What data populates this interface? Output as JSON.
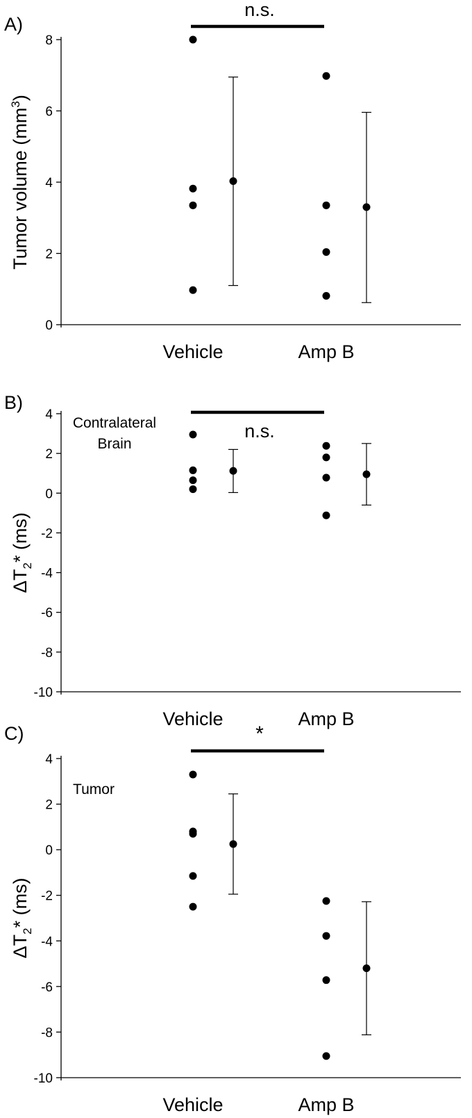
{
  "chart_data": [
    {
      "panel_label": "A)",
      "type": "scatter",
      "ylabel": "Tumor volume (mm",
      "ylabel_sup": "3",
      "ylabel_tail": ")",
      "ylim": [
        0,
        8
      ],
      "yticks": [
        0,
        2,
        4,
        6,
        8
      ],
      "categories": [
        "Vehicle",
        "Amp B"
      ],
      "series": [
        {
          "points": [
            8.0,
            3.82,
            3.35,
            0.97
          ],
          "mean": 4.03,
          "sd_low": 1.1,
          "sd_high": 6.95
        },
        {
          "points": [
            6.98,
            3.35,
            2.04,
            0.81
          ],
          "mean": 3.3,
          "sd_low": 0.62,
          "sd_high": 5.96
        }
      ],
      "annotation": "n.s.",
      "annotation_y": 8.45,
      "inline_label": []
    },
    {
      "panel_label": "B)",
      "type": "scatter",
      "ylabel": "ΔT",
      "ylabel_sub": "2",
      "ylabel_tail": "* (ms)",
      "ylim": [
        -10,
        4
      ],
      "yticks": [
        -10,
        -8,
        -6,
        -4,
        -2,
        0,
        2,
        4
      ],
      "categories": [
        "Vehicle",
        "Amp B"
      ],
      "series": [
        {
          "points": [
            2.95,
            1.15,
            0.65,
            0.2
          ],
          "mean": 1.12,
          "sd_low": 0.03,
          "sd_high": 2.2
        },
        {
          "points": [
            2.38,
            1.8,
            0.78,
            -1.12
          ],
          "mean": 0.95,
          "sd_low": -0.6,
          "sd_high": 2.5
        }
      ],
      "annotation": "n.s.",
      "annotation_y": 3.9,
      "inline_label": [
        "Contralateral",
        "Brain"
      ]
    },
    {
      "panel_label": "C)",
      "type": "scatter",
      "ylabel": "ΔT",
      "ylabel_sub": "2",
      "ylabel_tail": "* (ms)",
      "ylim": [
        -10,
        4
      ],
      "yticks": [
        -10,
        -8,
        -6,
        -4,
        -2,
        0,
        2,
        4
      ],
      "categories": [
        "Vehicle",
        "Amp B"
      ],
      "series": [
        {
          "points": [
            3.3,
            0.8,
            0.7,
            -1.15,
            -2.5
          ],
          "mean": 0.25,
          "sd_low": -1.95,
          "sd_high": 2.45
        },
        {
          "points": [
            -2.25,
            -3.78,
            -5.72,
            -9.05
          ],
          "mean": -5.2,
          "sd_low": -8.12,
          "sd_high": -2.28
        }
      ],
      "annotation": "*",
      "annotation_y": 4.75,
      "inline_label": [
        "Tumor"
      ]
    }
  ]
}
